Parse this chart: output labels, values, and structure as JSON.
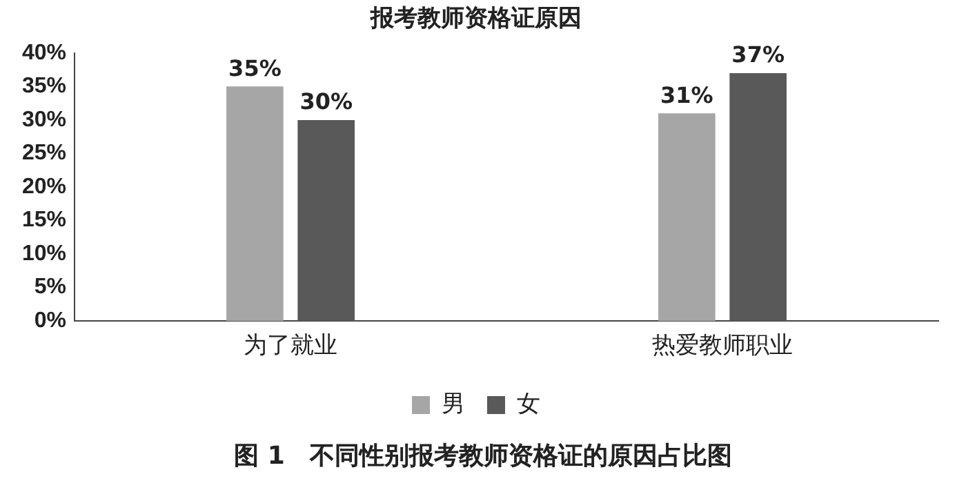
{
  "chart_data": {
    "type": "bar",
    "title": "报考教师资格证原因",
    "categories": [
      "为了就业",
      "热爱教师职业"
    ],
    "series": [
      {
        "name": "男",
        "color": "#a6a6a6",
        "values": [
          35,
          31
        ],
        "value_labels": [
          "35%",
          "31%"
        ]
      },
      {
        "name": "女",
        "color": "#595959",
        "values": [
          30,
          37
        ],
        "value_labels": [
          "30%",
          "37%"
        ]
      }
    ],
    "ylim": [
      0,
      40
    ],
    "yticks": [
      {
        "value": 0,
        "label": "0%"
      },
      {
        "value": 5,
        "label": "5%"
      },
      {
        "value": 10,
        "label": "10%"
      },
      {
        "value": 15,
        "label": "15%"
      },
      {
        "value": 20,
        "label": "20%"
      },
      {
        "value": 25,
        "label": "25%"
      },
      {
        "value": 30,
        "label": "30%"
      },
      {
        "value": 35,
        "label": "35%"
      },
      {
        "value": 40,
        "label": "40%"
      }
    ],
    "grid": false,
    "legend": "bottom",
    "annotations": [
      "图 1　不同性别报考教师资格证的原因占比图"
    ]
  }
}
